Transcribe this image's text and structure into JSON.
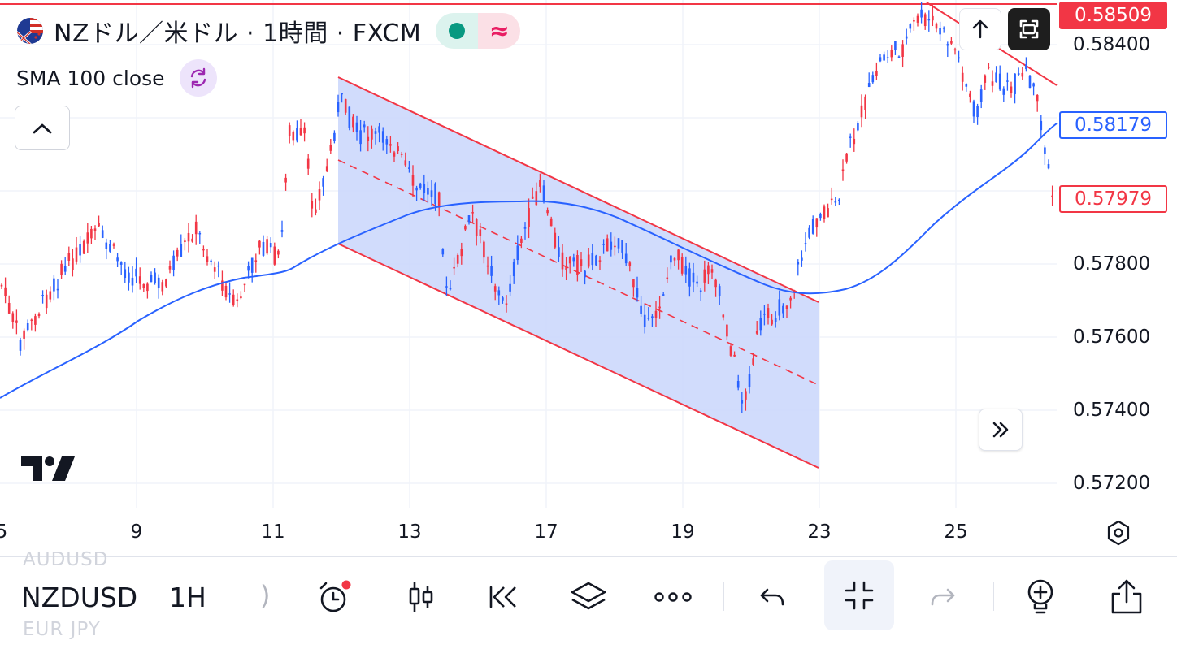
{
  "legend": {
    "title": "NZドル／米ドル · 1時間 · FXCM",
    "indicator": "SMA 100 close",
    "status_wave": "≈"
  },
  "price_axis": {
    "labels": [
      "0.58400",
      "0.57800",
      "0.57600",
      "0.57400",
      "0.57200"
    ],
    "tags": {
      "high": "0.58509",
      "sma": "0.58179",
      "last": "0.57979"
    }
  },
  "time_axis": {
    "labels": [
      "5",
      "9",
      "11",
      "13",
      "17",
      "19",
      "23",
      "25"
    ]
  },
  "toolbar": {
    "symbol": "NZDUSD",
    "interval": "1H",
    "paren": ")",
    "ghost_above": "AUDUSD",
    "ghost_below": "EUR JPY"
  },
  "icons": {
    "flag": "nz-us-flag-icon",
    "refresh": "refresh-icon",
    "collapse": "chevron-up-icon",
    "logo": "tradingview-logo",
    "scroll_top": "arrow-up-icon",
    "fullscreen": "fullscreen-icon",
    "goto_realtime": "double-chevron-right-icon",
    "settings": "hexagon-settings-icon",
    "alert": "alarm-clock-icon",
    "chart_type": "candles-icon",
    "replay": "replay-icon",
    "layers": "layers-icon",
    "more": "more-dots-icon",
    "undo": "undo-icon",
    "exit_fullscreen": "collapse-icon",
    "redo": "redo-icon",
    "add_indicator": "lightbulb-plus-icon",
    "share": "share-icon"
  },
  "colors": {
    "up": "#2962ff",
    "down": "#f23645",
    "sma": "#2962ff",
    "channel": "#f23645",
    "channel_fill": "#c9d6fb"
  }
}
